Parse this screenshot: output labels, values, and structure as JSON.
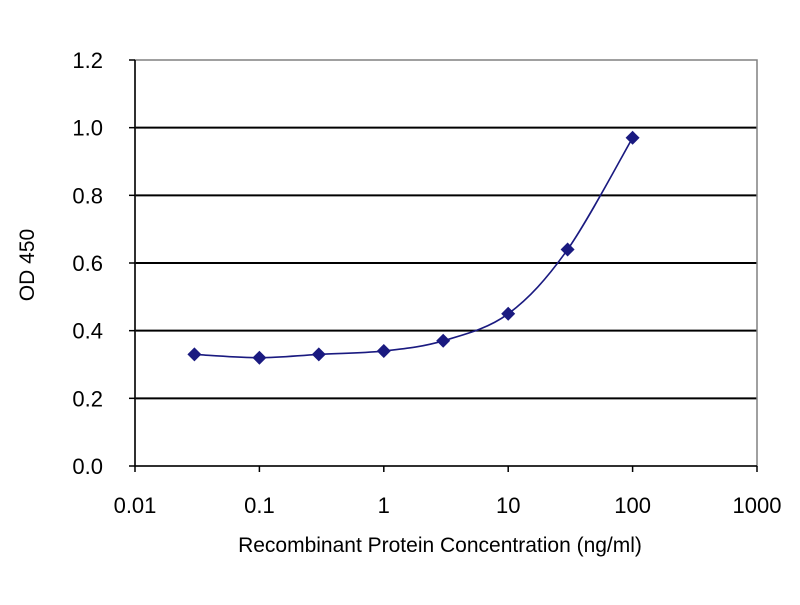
{
  "chart_data": {
    "type": "scatter",
    "title": "",
    "xlabel": "Recombinant Protein Concentration (ng/ml)",
    "ylabel": "OD 450",
    "xscale": "log",
    "xlim": [
      0.01,
      1000
    ],
    "ylim": [
      0.0,
      1.2
    ],
    "x_ticks": [
      "0.01",
      "0.1",
      "1",
      "10",
      "100",
      "1000"
    ],
    "y_ticks": [
      "0.0",
      "0.2",
      "0.4",
      "0.6",
      "0.8",
      "1.0",
      "1.2"
    ],
    "grid": "horizontal",
    "legend": "none",
    "series": [
      {
        "x": [
          0.03,
          0.1,
          0.3,
          1,
          3,
          10,
          30,
          100
        ],
        "y": [
          0.33,
          0.32,
          0.33,
          0.34,
          0.37,
          0.45,
          0.64,
          0.97
        ],
        "marker": "diamond",
        "line": "smooth"
      }
    ],
    "colors": {
      "series": "#1a1a80",
      "grid": "#000000",
      "plot_border": "#808080",
      "plot_background": "#ffffff"
    }
  }
}
